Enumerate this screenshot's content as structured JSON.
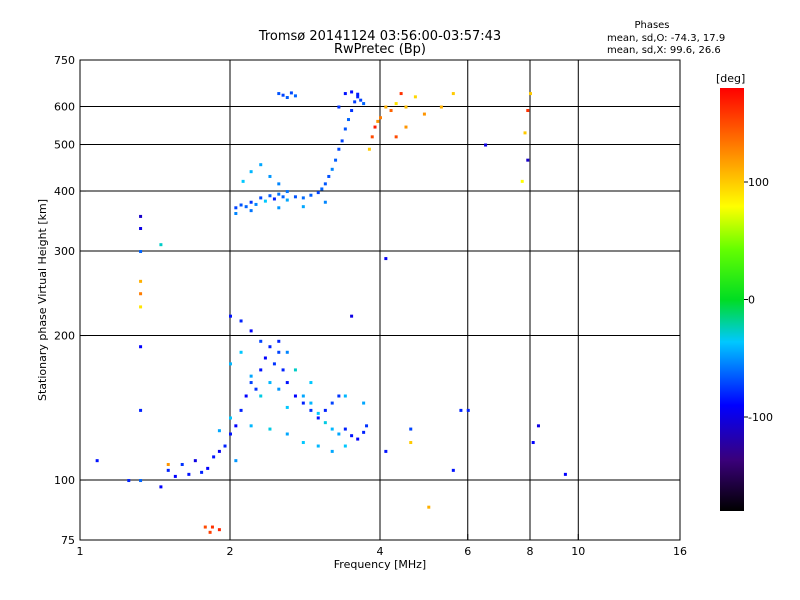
{
  "header": {
    "title_line1": "Tromsø 20141124 03:56:00-03:57:43",
    "title_line2": "RwPretec (Bp)",
    "phase_heading": "Phases",
    "phase_stats_o": "mean, sd,O: -74.3, 17.9",
    "phase_stats_x": "mean, sd,X:  99.6, 26.6"
  },
  "colorbar": {
    "unit_label": "[deg]",
    "range": [
      -180,
      180
    ],
    "ticks": [
      {
        "value": 100,
        "label": "100"
      },
      {
        "value": 0,
        "label": "0"
      },
      {
        "value": -100,
        "label": "-100"
      }
    ]
  },
  "chart_data": {
    "type": "scatter",
    "xlabel": "Frequency [MHz]",
    "ylabel": "Stationary phase Virtual Height [km]",
    "xscale": "log",
    "yscale": "log",
    "xlim": [
      1,
      16
    ],
    "ylim": [
      75,
      750
    ],
    "xticks": [
      1,
      2,
      4,
      6,
      8,
      10,
      16
    ],
    "xtick_labels": [
      "1",
      "2",
      "4",
      "6",
      "8",
      "10",
      "16"
    ],
    "yticks": [
      75,
      100,
      200,
      300,
      400,
      500,
      600,
      750
    ],
    "ytick_labels": [
      "75",
      "100",
      "200",
      "300",
      "400",
      "500",
      "600",
      "750"
    ],
    "xgrid": [
      2,
      4,
      6,
      8,
      10
    ],
    "ygrid": [
      100,
      200,
      300,
      400,
      500,
      600
    ],
    "color_by": "phase_deg",
    "series": [
      {
        "points": [
          [
            2.05,
            370
          ],
          [
            2.1,
            375
          ],
          [
            2.15,
            372
          ],
          [
            2.2,
            380
          ],
          [
            2.25,
            376
          ],
          [
            2.3,
            388
          ],
          [
            2.35,
            382
          ],
          [
            2.4,
            392
          ],
          [
            2.45,
            386
          ],
          [
            2.5,
            395
          ],
          [
            2.55,
            390
          ],
          [
            2.6,
            384
          ],
          [
            2.7,
            390
          ],
          [
            2.8,
            388
          ],
          [
            2.9,
            393
          ],
          [
            3.0,
            398
          ],
          [
            3.05,
            405
          ],
          [
            3.1,
            415
          ],
          [
            3.15,
            430
          ],
          [
            3.2,
            445
          ],
          [
            3.25,
            465
          ],
          [
            3.3,
            490
          ],
          [
            3.35,
            510
          ],
          [
            3.4,
            540
          ],
          [
            3.45,
            565
          ],
          [
            3.5,
            590
          ],
          [
            3.55,
            615
          ],
          [
            3.6,
            630
          ],
          [
            3.65,
            620
          ],
          [
            3.7,
            610
          ],
          [
            2.12,
            420
          ],
          [
            2.2,
            440
          ],
          [
            2.3,
            455
          ],
          [
            2.4,
            430
          ],
          [
            2.5,
            415
          ],
          [
            2.6,
            400
          ],
          [
            3.4,
            640
          ],
          [
            3.5,
            645
          ],
          [
            3.6,
            638
          ],
          [
            3.3,
            600
          ],
          [
            2.5,
            640
          ],
          [
            2.55,
            635
          ],
          [
            2.6,
            628
          ],
          [
            2.65,
            642
          ],
          [
            2.7,
            633
          ],
          [
            2.05,
            360
          ],
          [
            2.2,
            365
          ],
          [
            2.5,
            370
          ],
          [
            2.8,
            372
          ],
          [
            3.1,
            380
          ]
        ],
        "phases": [
          -80,
          -75,
          -70,
          -85,
          -60,
          -78,
          -40,
          -72,
          -90,
          -65,
          -70,
          -50,
          -75,
          -68,
          -72,
          -80,
          -70,
          -74,
          -76,
          -60,
          -72,
          -78,
          -80,
          -75,
          -70,
          -85,
          -82,
          -90,
          -80,
          -70,
          -40,
          -45,
          -50,
          -55,
          -60,
          -65,
          -95,
          -98,
          -92,
          -85,
          -75,
          -80,
          -72,
          -78,
          -70,
          -60,
          -65,
          -55,
          -50,
          -60
        ]
      },
      {
        "points": [
          [
            3.8,
            490
          ],
          [
            3.85,
            520
          ],
          [
            3.9,
            545
          ],
          [
            3.95,
            560
          ],
          [
            4.0,
            570
          ],
          [
            4.1,
            600
          ],
          [
            4.2,
            590
          ],
          [
            4.3,
            610
          ],
          [
            4.4,
            640
          ],
          [
            4.5,
            600
          ],
          [
            4.7,
            630
          ],
          [
            4.9,
            580
          ],
          [
            5.3,
            600
          ],
          [
            5.6,
            640
          ],
          [
            7.9,
            590
          ],
          [
            7.8,
            530
          ],
          [
            7.7,
            420
          ],
          [
            8.0,
            640
          ],
          [
            4.3,
            520
          ],
          [
            4.5,
            545
          ],
          [
            1.32,
            260
          ],
          [
            1.32,
            245
          ],
          [
            1.32,
            230
          ],
          [
            1.5,
            108
          ],
          [
            5.0,
            88
          ],
          [
            1.78,
            80
          ],
          [
            1.84,
            80
          ],
          [
            1.9,
            79
          ],
          [
            1.82,
            78
          ],
          [
            4.6,
            120
          ]
        ],
        "phases": [
          100,
          150,
          170,
          120,
          130,
          110,
          140,
          90,
          160,
          105,
          95,
          120,
          110,
          100,
          160,
          100,
          80,
          100,
          150,
          120,
          110,
          130,
          90,
          120,
          110,
          150,
          160,
          165,
          155,
          100
        ]
      },
      {
        "points": [
          [
            1.5,
            105
          ],
          [
            1.55,
            102
          ],
          [
            1.6,
            108
          ],
          [
            1.65,
            103
          ],
          [
            1.7,
            110
          ],
          [
            1.75,
            104
          ],
          [
            1.8,
            106
          ],
          [
            1.85,
            112
          ],
          [
            1.9,
            115
          ],
          [
            1.95,
            118
          ],
          [
            2.0,
            125
          ],
          [
            2.05,
            130
          ],
          [
            2.1,
            140
          ],
          [
            2.15,
            150
          ],
          [
            2.2,
            160
          ],
          [
            2.25,
            155
          ],
          [
            2.3,
            170
          ],
          [
            2.35,
            180
          ],
          [
            2.4,
            190
          ],
          [
            2.45,
            175
          ],
          [
            2.5,
            185
          ],
          [
            2.55,
            170
          ],
          [
            2.6,
            160
          ],
          [
            2.7,
            150
          ],
          [
            2.8,
            145
          ],
          [
            2.9,
            140
          ],
          [
            3.0,
            135
          ],
          [
            3.1,
            140
          ],
          [
            3.2,
            145
          ],
          [
            3.3,
            150
          ],
          [
            3.4,
            128
          ],
          [
            3.5,
            124
          ],
          [
            3.6,
            122
          ],
          [
            3.7,
            126
          ],
          [
            3.75,
            130
          ],
          [
            2.0,
            220
          ],
          [
            2.1,
            215
          ],
          [
            2.2,
            205
          ],
          [
            2.3,
            195
          ],
          [
            2.5,
            195
          ],
          [
            1.32,
            100
          ],
          [
            1.32,
            140
          ],
          [
            1.32,
            190
          ],
          [
            1.32,
            335
          ],
          [
            1.32,
            355
          ],
          [
            1.08,
            110
          ],
          [
            1.25,
            100
          ],
          [
            1.45,
            97
          ],
          [
            6.5,
            500
          ],
          [
            7.9,
            465
          ],
          [
            8.3,
            130
          ],
          [
            9.4,
            103
          ],
          [
            5.8,
            140
          ],
          [
            5.6,
            105
          ],
          [
            4.1,
            290
          ],
          [
            3.5,
            220
          ],
          [
            6.0,
            140
          ],
          [
            4.6,
            128
          ],
          [
            4.1,
            115
          ],
          [
            8.1,
            120
          ]
        ],
        "phases": [
          -90,
          -100,
          -85,
          -95,
          -110,
          -90,
          -100,
          -95,
          -105,
          -90,
          -95,
          -100,
          -90,
          -100,
          -80,
          -85,
          -95,
          -100,
          -90,
          -85,
          -80,
          -90,
          -95,
          -100,
          -90,
          -85,
          -95,
          -90,
          -80,
          -85,
          -90,
          -95,
          -100,
          -90,
          -85,
          -95,
          -90,
          -100,
          -80,
          -90,
          -70,
          -90,
          -100,
          -110,
          -120,
          -95,
          -90,
          -100,
          -110,
          -120,
          -110,
          -100,
          -90,
          -95,
          -105,
          -110,
          -90,
          -80,
          -95,
          -100
        ]
      },
      {
        "points": [
          [
            2.0,
            175
          ],
          [
            2.1,
            185
          ],
          [
            2.2,
            165
          ],
          [
            2.3,
            150
          ],
          [
            2.4,
            160
          ],
          [
            2.5,
            155
          ],
          [
            2.6,
            142
          ],
          [
            2.7,
            170
          ],
          [
            2.8,
            150
          ],
          [
            2.9,
            145
          ],
          [
            3.0,
            138
          ],
          [
            3.1,
            132
          ],
          [
            3.2,
            128
          ],
          [
            3.3,
            125
          ],
          [
            2.0,
            135
          ],
          [
            2.2,
            130
          ],
          [
            2.4,
            128
          ],
          [
            2.6,
            125
          ],
          [
            2.8,
            120
          ],
          [
            3.0,
            118
          ],
          [
            3.2,
            115
          ],
          [
            3.4,
            118
          ],
          [
            1.45,
            310
          ],
          [
            1.32,
            300
          ],
          [
            1.9,
            127
          ],
          [
            2.05,
            110
          ],
          [
            2.6,
            185
          ],
          [
            2.9,
            160
          ],
          [
            3.4,
            150
          ],
          [
            3.7,
            145
          ]
        ],
        "phases": [
          -45,
          -40,
          -50,
          -35,
          -45,
          -55,
          -40,
          -30,
          -50,
          -45,
          -40,
          -35,
          -45,
          -50,
          -40,
          -45,
          -35,
          -50,
          -40,
          -45,
          -50,
          -40,
          -30,
          -70,
          -50,
          -55,
          -60,
          -40,
          -45,
          -50
        ]
      }
    ]
  }
}
